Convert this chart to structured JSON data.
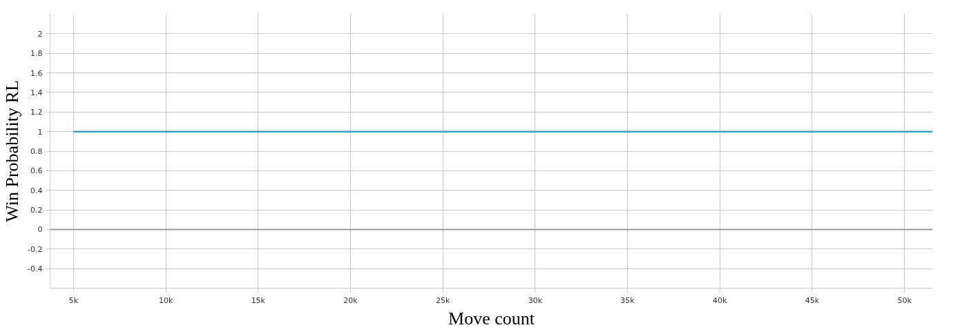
{
  "chart_data": {
    "type": "line",
    "xlabel": "Move count",
    "ylabel": "Win Probability RL",
    "x": [
      5000,
      51530
    ],
    "series": [
      {
        "color": "#29a3dc",
        "values": [
          1,
          1
        ]
      }
    ],
    "xlim": [
      3730,
      51530
    ],
    "ylim": [
      -0.6,
      2.2
    ],
    "xticks": [
      {
        "value": 5000,
        "label": "5k"
      },
      {
        "value": 10000,
        "label": "10k"
      },
      {
        "value": 15000,
        "label": "15k"
      },
      {
        "value": 20000,
        "label": "20k"
      },
      {
        "value": 25000,
        "label": "25k"
      },
      {
        "value": 30000,
        "label": "30k"
      },
      {
        "value": 35000,
        "label": "35k"
      },
      {
        "value": 40000,
        "label": "40k"
      },
      {
        "value": 45000,
        "label": "45k"
      },
      {
        "value": 50000,
        "label": "50k"
      }
    ],
    "yticks": [
      -0.4,
      -0.2,
      0,
      0.2,
      0.4,
      0.6,
      0.8,
      1,
      1.2,
      1.4,
      1.6,
      1.8,
      2
    ],
    "ref_lines": [
      {
        "axis": "y",
        "value": 0,
        "color": "#999999"
      }
    ],
    "grid": true,
    "marker": "none",
    "line_style": "solid"
  }
}
